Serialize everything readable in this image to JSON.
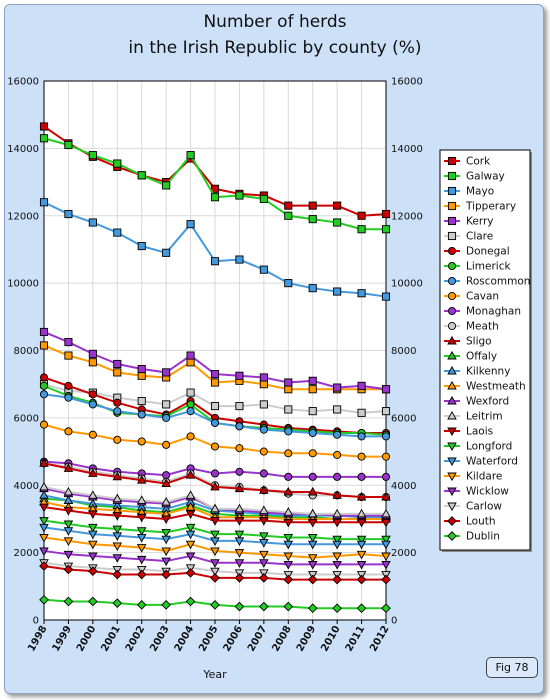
{
  "figure_label": "Fig 78",
  "chart_data": {
    "type": "line",
    "title_lines": [
      "Number of herds",
      "in the Irish Republic by county (%)"
    ],
    "xlabel": "Year",
    "ylabel": "",
    "x": [
      "1998",
      "1999",
      "2000",
      "2001",
      "2002",
      "2003",
      "2004",
      "2005",
      "2006",
      "2007",
      "2008",
      "2009",
      "2010",
      "2011",
      "2012"
    ],
    "ylim": [
      0,
      16000
    ],
    "yticks": [
      0,
      2000,
      4000,
      6000,
      8000,
      10000,
      12000,
      14000,
      16000
    ],
    "ytick_labels": [
      "0",
      "2000",
      "4000",
      "6000",
      "8000",
      "10000",
      "12000",
      "14000",
      "16000"
    ],
    "grid": true,
    "legend_position": "right",
    "series": [
      {
        "name": "Cork",
        "color": "#cc0000",
        "marker": "square",
        "values": [
          14650,
          14150,
          13750,
          13450,
          13200,
          13000,
          13700,
          12800,
          12650,
          12600,
          12300,
          12300,
          12300,
          12000,
          12050
        ]
      },
      {
        "name": "Galway",
        "color": "#22cc22",
        "marker": "square",
        "values": [
          14300,
          14100,
          13800,
          13550,
          13200,
          12900,
          13800,
          12550,
          12600,
          12500,
          12000,
          11900,
          11800,
          11600,
          11600
        ]
      },
      {
        "name": "Mayo",
        "color": "#4499dd",
        "marker": "square",
        "values": [
          12400,
          12050,
          11800,
          11500,
          11100,
          10900,
          11750,
          10650,
          10700,
          10400,
          10000,
          9850,
          9750,
          9700,
          9600
        ]
      },
      {
        "name": "Tipperary",
        "color": "#ff9900",
        "marker": "square",
        "values": [
          8150,
          7850,
          7650,
          7350,
          7250,
          7200,
          7650,
          7050,
          7100,
          7000,
          6850,
          6850,
          6850,
          6850,
          6850
        ]
      },
      {
        "name": "Kerry",
        "color": "#9933cc",
        "marker": "square",
        "values": [
          8550,
          8250,
          7900,
          7600,
          7450,
          7350,
          7850,
          7300,
          7250,
          7200,
          7050,
          7100,
          6900,
          6950,
          6850
        ]
      },
      {
        "name": "Clare",
        "color": "#cccccc",
        "marker": "square",
        "values": [
          7000,
          6800,
          6750,
          6600,
          6500,
          6400,
          6750,
          6350,
          6350,
          6400,
          6250,
          6200,
          6250,
          6150,
          6200
        ]
      },
      {
        "name": "Donegal",
        "color": "#cc0000",
        "marker": "circle",
        "values": [
          7200,
          6950,
          6700,
          6450,
          6250,
          6100,
          6500,
          6000,
          5900,
          5800,
          5700,
          5650,
          5600,
          5550,
          5550
        ]
      },
      {
        "name": "Limerick",
        "color": "#22cc22",
        "marker": "circle",
        "values": [
          6950,
          6650,
          6450,
          6150,
          6100,
          6050,
          6400,
          5850,
          5750,
          5700,
          5650,
          5600,
          5550,
          5550,
          5500
        ]
      },
      {
        "name": "Roscommon",
        "color": "#4499dd",
        "marker": "circle",
        "values": [
          6700,
          6600,
          6400,
          6200,
          6100,
          6000,
          6200,
          5850,
          5750,
          5650,
          5600,
          5550,
          5500,
          5450,
          5450
        ]
      },
      {
        "name": "Cavan",
        "color": "#ff9900",
        "marker": "circle",
        "values": [
          5800,
          5600,
          5500,
          5350,
          5300,
          5200,
          5450,
          5150,
          5100,
          5000,
          4950,
          4950,
          4900,
          4850,
          4850
        ]
      },
      {
        "name": "Monaghan",
        "color": "#9933cc",
        "marker": "circle",
        "values": [
          4700,
          4650,
          4500,
          4400,
          4350,
          4300,
          4500,
          4350,
          4400,
          4350,
          4250,
          4250,
          4250,
          4250,
          4250
        ]
      },
      {
        "name": "Meath",
        "color": "#cccccc",
        "marker": "circle",
        "values": [
          4650,
          4550,
          4400,
          4300,
          4200,
          4100,
          4350,
          4000,
          3950,
          3850,
          3750,
          3700,
          3700,
          3650,
          3650
        ]
      },
      {
        "name": "Sligo",
        "color": "#cc0000",
        "marker": "triangle",
        "values": [
          4650,
          4500,
          4350,
          4250,
          4150,
          4050,
          4300,
          3950,
          3900,
          3850,
          3800,
          3800,
          3700,
          3650,
          3650
        ]
      },
      {
        "name": "Offaly",
        "color": "#22cc22",
        "marker": "triangle",
        "values": [
          3600,
          3550,
          3400,
          3350,
          3250,
          3200,
          3400,
          3150,
          3100,
          3100,
          3050,
          3050,
          3000,
          3000,
          3000
        ]
      },
      {
        "name": "Kilkenny",
        "color": "#4499dd",
        "marker": "triangle",
        "values": [
          3700,
          3550,
          3450,
          3400,
          3350,
          3300,
          3500,
          3250,
          3200,
          3150,
          3100,
          3100,
          3100,
          3050,
          3050
        ]
      },
      {
        "name": "Westmeath",
        "color": "#ff9900",
        "marker": "triangle",
        "values": [
          3500,
          3350,
          3300,
          3250,
          3200,
          3150,
          3350,
          3050,
          3050,
          3050,
          3000,
          3000,
          3000,
          3000,
          3000
        ]
      },
      {
        "name": "Wexford",
        "color": "#9933cc",
        "marker": "triangle",
        "values": [
          3900,
          3750,
          3650,
          3550,
          3500,
          3450,
          3650,
          3300,
          3250,
          3200,
          3150,
          3150,
          3100,
          3100,
          3100
        ]
      },
      {
        "name": "Leitrim",
        "color": "#cccccc",
        "marker": "triangle",
        "values": [
          3950,
          3800,
          3700,
          3600,
          3550,
          3500,
          3700,
          3300,
          3300,
          3250,
          3200,
          3150,
          3150,
          3150,
          3150
        ]
      },
      {
        "name": "Laois",
        "color": "#cc0000",
        "marker": "triangle-down",
        "values": [
          3350,
          3250,
          3150,
          3100,
          3050,
          3000,
          3150,
          2950,
          2950,
          2950,
          2900,
          2900,
          2900,
          2900,
          2900
        ]
      },
      {
        "name": "Longford",
        "color": "#22cc22",
        "marker": "triangle-down",
        "values": [
          2950,
          2850,
          2750,
          2700,
          2650,
          2600,
          2750,
          2550,
          2550,
          2500,
          2450,
          2450,
          2400,
          2400,
          2400
        ]
      },
      {
        "name": "Waterford",
        "color": "#4499dd",
        "marker": "triangle-down",
        "values": [
          2750,
          2650,
          2550,
          2500,
          2450,
          2400,
          2550,
          2350,
          2350,
          2300,
          2250,
          2250,
          2250,
          2250,
          2250
        ]
      },
      {
        "name": "Kildare",
        "color": "#ff9900",
        "marker": "triangle-down",
        "values": [
          2450,
          2350,
          2250,
          2200,
          2150,
          2050,
          2250,
          2050,
          2000,
          1950,
          1900,
          1850,
          1900,
          1950,
          1900
        ]
      },
      {
        "name": "Wicklow",
        "color": "#9933cc",
        "marker": "triangle-down",
        "values": [
          2050,
          1950,
          1900,
          1850,
          1800,
          1750,
          1900,
          1700,
          1700,
          1700,
          1650,
          1650,
          1650,
          1650,
          1650
        ]
      },
      {
        "name": "Carlow",
        "color": "#cccccc",
        "marker": "triangle-down",
        "values": [
          1700,
          1600,
          1550,
          1500,
          1500,
          1450,
          1550,
          1450,
          1400,
          1400,
          1350,
          1350,
          1350,
          1350,
          1350
        ]
      },
      {
        "name": "Louth",
        "color": "#cc0000",
        "marker": "diamond",
        "values": [
          1600,
          1500,
          1450,
          1350,
          1350,
          1350,
          1400,
          1250,
          1250,
          1250,
          1200,
          1200,
          1200,
          1200,
          1200
        ]
      },
      {
        "name": "Dublin",
        "color": "#22cc22",
        "marker": "diamond",
        "values": [
          600,
          550,
          550,
          500,
          450,
          450,
          550,
          450,
          400,
          400,
          400,
          350,
          350,
          350,
          350
        ]
      }
    ]
  }
}
